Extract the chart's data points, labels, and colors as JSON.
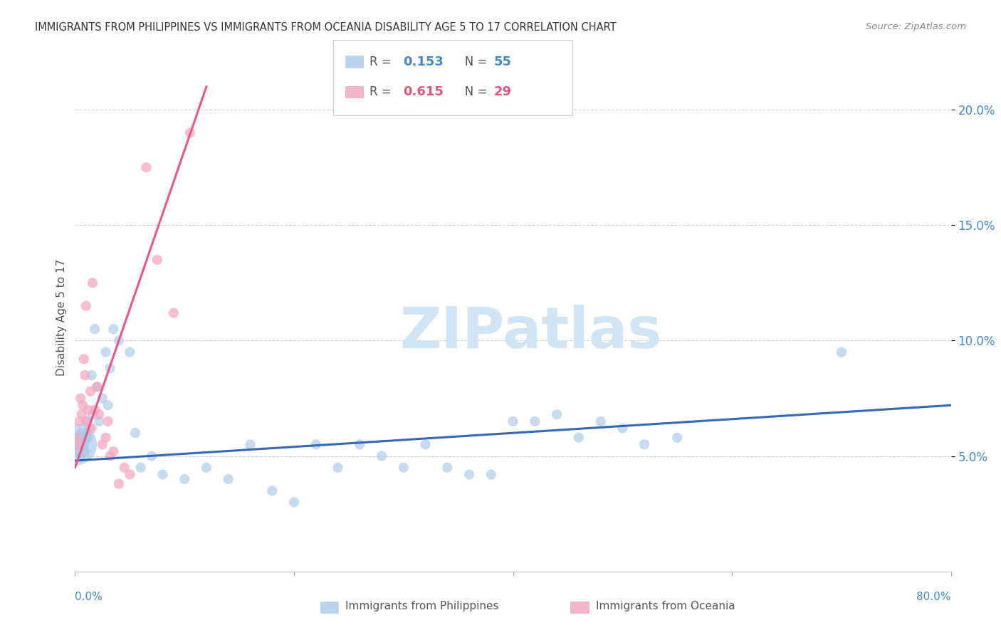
{
  "title": "IMMIGRANTS FROM PHILIPPINES VS IMMIGRANTS FROM OCEANIA DISABILITY AGE 5 TO 17 CORRELATION CHART",
  "source": "Source: ZipAtlas.com",
  "ylabel": "Disability Age 5 to 17",
  "xlim": [
    0.0,
    80.0
  ],
  "ylim": [
    0.0,
    22.0
  ],
  "yticks": [
    5.0,
    10.0,
    15.0,
    20.0
  ],
  "ytick_labels": [
    "5.0%",
    "10.0%",
    "15.0%",
    "20.0%"
  ],
  "xticks": [
    0.0,
    20.0,
    40.0,
    60.0,
    80.0
  ],
  "legend_r1": "0.153",
  "legend_n1": "55",
  "legend_r2": "0.615",
  "legend_n2": "29",
  "blue_color": "#a8c8e8",
  "pink_color": "#f4a8c0",
  "blue_line_color": "#3468b4",
  "pink_line_color": "#e85888",
  "watermark": "ZIPatlas",
  "watermark_color": "#d0e4f4",
  "blue_scatter_x": [
    0.2,
    0.3,
    0.4,
    0.5,
    0.5,
    0.6,
    0.7,
    0.8,
    0.9,
    1.0,
    1.0,
    1.1,
    1.2,
    1.3,
    1.5,
    1.6,
    1.8,
    2.0,
    2.2,
    2.5,
    2.8,
    3.0,
    3.2,
    3.5,
    4.0,
    5.0,
    5.5,
    6.0,
    7.0,
    8.0,
    10.0,
    12.0,
    14.0,
    16.0,
    18.0,
    20.0,
    22.0,
    24.0,
    26.0,
    28.0,
    30.0,
    32.0,
    34.0,
    36.0,
    38.0,
    40.0,
    42.0,
    44.0,
    46.0,
    48.0,
    50.0,
    52.0,
    55.0,
    70.0,
    0.1
  ],
  "blue_scatter_y": [
    5.5,
    5.2,
    5.8,
    5.0,
    6.0,
    5.5,
    5.8,
    5.5,
    5.2,
    5.8,
    6.5,
    6.0,
    5.8,
    6.2,
    8.5,
    6.8,
    10.5,
    8.0,
    6.5,
    7.5,
    9.5,
    7.2,
    8.8,
    10.5,
    10.0,
    9.5,
    6.0,
    4.5,
    5.0,
    4.2,
    4.0,
    4.5,
    4.0,
    5.5,
    3.5,
    3.0,
    5.5,
    4.5,
    5.5,
    5.0,
    4.5,
    5.5,
    4.5,
    4.2,
    4.2,
    6.5,
    6.5,
    6.8,
    5.8,
    6.5,
    6.2,
    5.5,
    5.8,
    9.5,
    5.5
  ],
  "blue_scatter_sizes": [
    30,
    30,
    30,
    30,
    30,
    30,
    30,
    30,
    30,
    30,
    30,
    30,
    30,
    30,
    30,
    30,
    30,
    30,
    30,
    30,
    30,
    30,
    30,
    30,
    30,
    30,
    30,
    30,
    30,
    30,
    30,
    30,
    30,
    30,
    30,
    30,
    30,
    30,
    30,
    30,
    30,
    30,
    30,
    30,
    30,
    30,
    30,
    30,
    30,
    30,
    30,
    30,
    30,
    30,
    500
  ],
  "pink_scatter_x": [
    0.2,
    0.3,
    0.4,
    0.5,
    0.6,
    0.7,
    0.8,
    0.9,
    1.0,
    1.1,
    1.2,
    1.4,
    1.5,
    1.6,
    1.8,
    2.0,
    2.2,
    2.5,
    2.8,
    3.0,
    3.2,
    3.5,
    4.0,
    4.5,
    5.0,
    6.5,
    7.5,
    9.0,
    10.5
  ],
  "pink_scatter_y": [
    5.8,
    5.5,
    6.5,
    7.5,
    6.8,
    7.2,
    9.2,
    8.5,
    11.5,
    6.5,
    7.0,
    7.8,
    6.2,
    12.5,
    7.0,
    8.0,
    6.8,
    5.5,
    5.8,
    6.5,
    5.0,
    5.2,
    3.8,
    4.5,
    4.2,
    17.5,
    13.5,
    11.2,
    19.0
  ],
  "pink_scatter_sizes": [
    30,
    30,
    30,
    30,
    30,
    30,
    30,
    30,
    30,
    30,
    30,
    30,
    30,
    30,
    30,
    30,
    30,
    30,
    30,
    30,
    30,
    30,
    30,
    30,
    30,
    30,
    30,
    30,
    30
  ],
  "blue_line_x0": 0.0,
  "blue_line_x1": 80.0,
  "blue_line_y0": 4.8,
  "blue_line_y1": 7.2,
  "pink_line_x0": 0.0,
  "pink_line_x1": 12.0,
  "pink_line_y0": 4.5,
  "pink_line_y1": 21.0
}
